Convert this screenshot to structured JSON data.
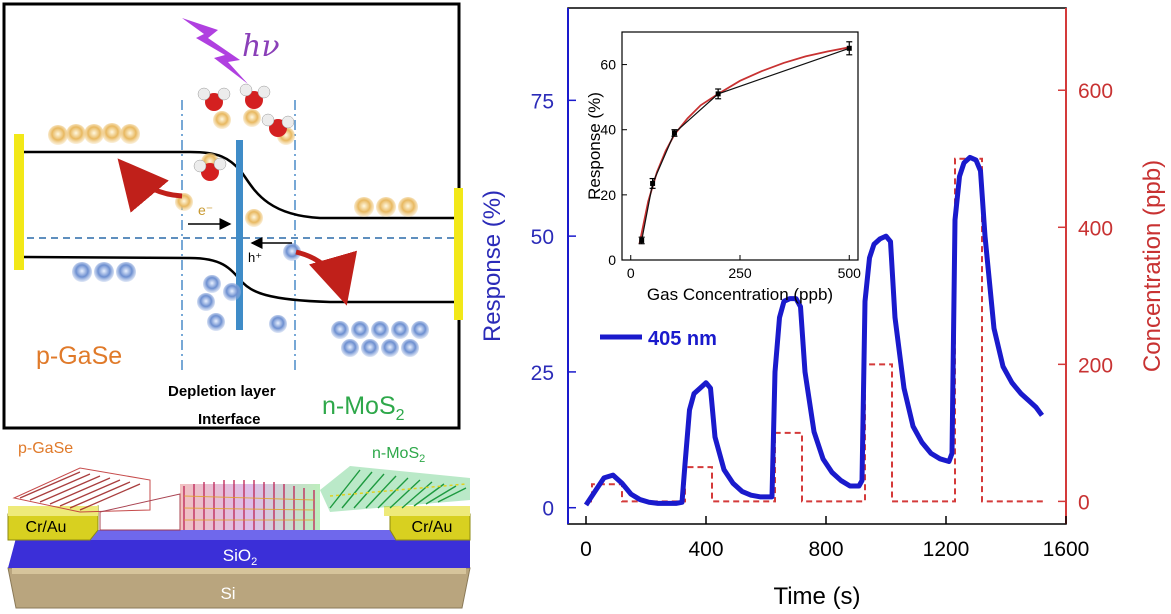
{
  "schematic": {
    "photon_label": "hν",
    "p_label": "p-GaSe",
    "n_label": "n-MoS",
    "n_label_sub": "2",
    "depletion_label": "Depletion layer",
    "interface_label": "Interface",
    "electron_label": "e⁻",
    "hole_label": "h⁺",
    "electron_glyph": "e",
    "hole_glyph": "h"
  },
  "device": {
    "p_label": "p-GaSe",
    "n_label": "n-MoS",
    "n_label_sub": "2",
    "contact_left": "Cr/Au",
    "contact_right": "Cr/Au",
    "oxide_label": "SiO",
    "oxide_sub": "2",
    "substrate_label": "Si"
  },
  "chart_data": [
    {
      "type": "line",
      "xlabel": "Time (s)",
      "ylabel": "Response (%)",
      "y2label": "Concentration (ppb)",
      "xlim": [
        -60,
        1600
      ],
      "ylim": [
        -3,
        92
      ],
      "y2lim": [
        -33,
        720
      ],
      "xticks": [
        0,
        400,
        800,
        1200,
        1600
      ],
      "yticks": [
        0,
        25,
        50,
        75
      ],
      "y2ticks": [
        0,
        200,
        400,
        600
      ],
      "legend": "405 nm",
      "legend_position": "center-left",
      "colors": {
        "response": "#1a1acc",
        "concentration": "#d43a3a",
        "left_axis": "#2b2bb8",
        "right_axis": "#c83232"
      },
      "series": [
        {
          "name": "405 nm",
          "axis": "left",
          "x": [
            0,
            30,
            60,
            90,
            120,
            150,
            180,
            210,
            240,
            270,
            300,
            320,
            330,
            345,
            360,
            380,
            400,
            415,
            430,
            460,
            490,
            520,
            550,
            580,
            610,
            620,
            630,
            645,
            660,
            680,
            700,
            715,
            730,
            760,
            790,
            820,
            850,
            880,
            910,
            920,
            930,
            945,
            960,
            980,
            1000,
            1015,
            1030,
            1060,
            1090,
            1120,
            1150,
            1180,
            1210,
            1220,
            1230,
            1245,
            1260,
            1280,
            1300,
            1315,
            1330,
            1360,
            1390,
            1420,
            1450,
            1480,
            1500,
            1520
          ],
          "y": [
            0.5,
            3,
            5.5,
            6,
            4.5,
            2.5,
            1.5,
            1,
            0.8,
            0.8,
            0.8,
            1,
            8,
            18,
            21,
            22,
            23,
            22,
            13,
            7,
            4.5,
            3,
            2.3,
            2,
            2,
            2,
            25,
            35,
            38,
            38.5,
            38.5,
            37,
            25,
            14,
            9,
            6.5,
            5,
            4,
            4,
            5,
            38,
            46,
            48.5,
            49.5,
            50,
            49,
            35,
            22,
            15,
            12,
            10,
            9,
            8.5,
            10,
            53,
            61,
            63.5,
            64.5,
            64,
            62,
            50,
            33,
            26,
            23,
            21,
            19.5,
            18.5,
            17
          ]
        },
        {
          "name": "",
          "axis": "right",
          "x": [
            0,
            20,
            20,
            120,
            120,
            330,
            330,
            420,
            420,
            630,
            630,
            720,
            720,
            930,
            930,
            1020,
            1020,
            1230,
            1230,
            1320,
            1320,
            1530
          ],
          "y": [
            0,
            0,
            25,
            25,
            0,
            0,
            50,
            50,
            0,
            0,
            100,
            100,
            0,
            0,
            200,
            200,
            0,
            0,
            500,
            500,
            0,
            0
          ]
        }
      ]
    },
    {
      "type": "line",
      "xlabel": "Gas Concentration (ppb)",
      "ylabel": "Response (%)",
      "xlim": [
        -20,
        520
      ],
      "ylim": [
        0,
        70
      ],
      "xticks": [
        0,
        250,
        500
      ],
      "yticks": [
        0,
        20,
        40,
        60
      ],
      "colors": {
        "data": "#111111",
        "fit": "#c83232"
      },
      "series": [
        {
          "name": "",
          "x": [
            25,
            50,
            100,
            200,
            500
          ],
          "y": [
            6,
            23.5,
            39,
            51,
            65
          ],
          "yerr": [
            1,
            1.5,
            1,
            1.5,
            2
          ]
        },
        {
          "name": "",
          "kind": "fit",
          "x": [
            20,
            40,
            60,
            80,
            100,
            130,
            160,
            200,
            250,
            300,
            350,
            400,
            450,
            500
          ],
          "y": [
            5,
            18,
            27,
            33.5,
            38.5,
            43.5,
            47.5,
            51,
            55,
            58,
            60.5,
            62.5,
            64,
            65.3
          ]
        }
      ]
    }
  ]
}
